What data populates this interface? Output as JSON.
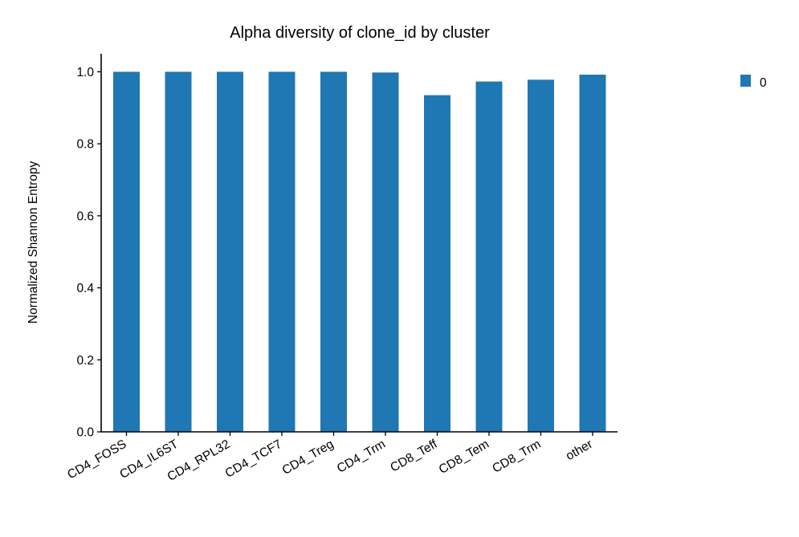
{
  "chart_data": {
    "type": "bar",
    "title": "Alpha diversity of clone_id by cluster",
    "xlabel": "",
    "ylabel": "Normalized Shannon Entropy",
    "categories": [
      "CD4_FOSS",
      "CD4_IL6ST",
      "CD4_RPL32",
      "CD4_TCF7",
      "CD4_Treg",
      "CD4_Trm",
      "CD8_Teff",
      "CD8_Tem",
      "CD8_Trm",
      "other"
    ],
    "series": [
      {
        "name": "0",
        "color": "#1f77b4",
        "values": [
          1.0,
          1.0,
          1.0,
          1.0,
          1.0,
          0.998,
          0.935,
          0.973,
          0.978,
          0.992
        ]
      }
    ],
    "ylim": [
      0,
      1.05
    ],
    "yticks": [
      0.0,
      0.2,
      0.4,
      0.6,
      0.8,
      1.0
    ],
    "ytick_labels": [
      "0.0",
      "0.2",
      "0.4",
      "0.6",
      "0.8",
      "1.0"
    ],
    "grid": false,
    "legend_position": "top-right, outside plot"
  }
}
